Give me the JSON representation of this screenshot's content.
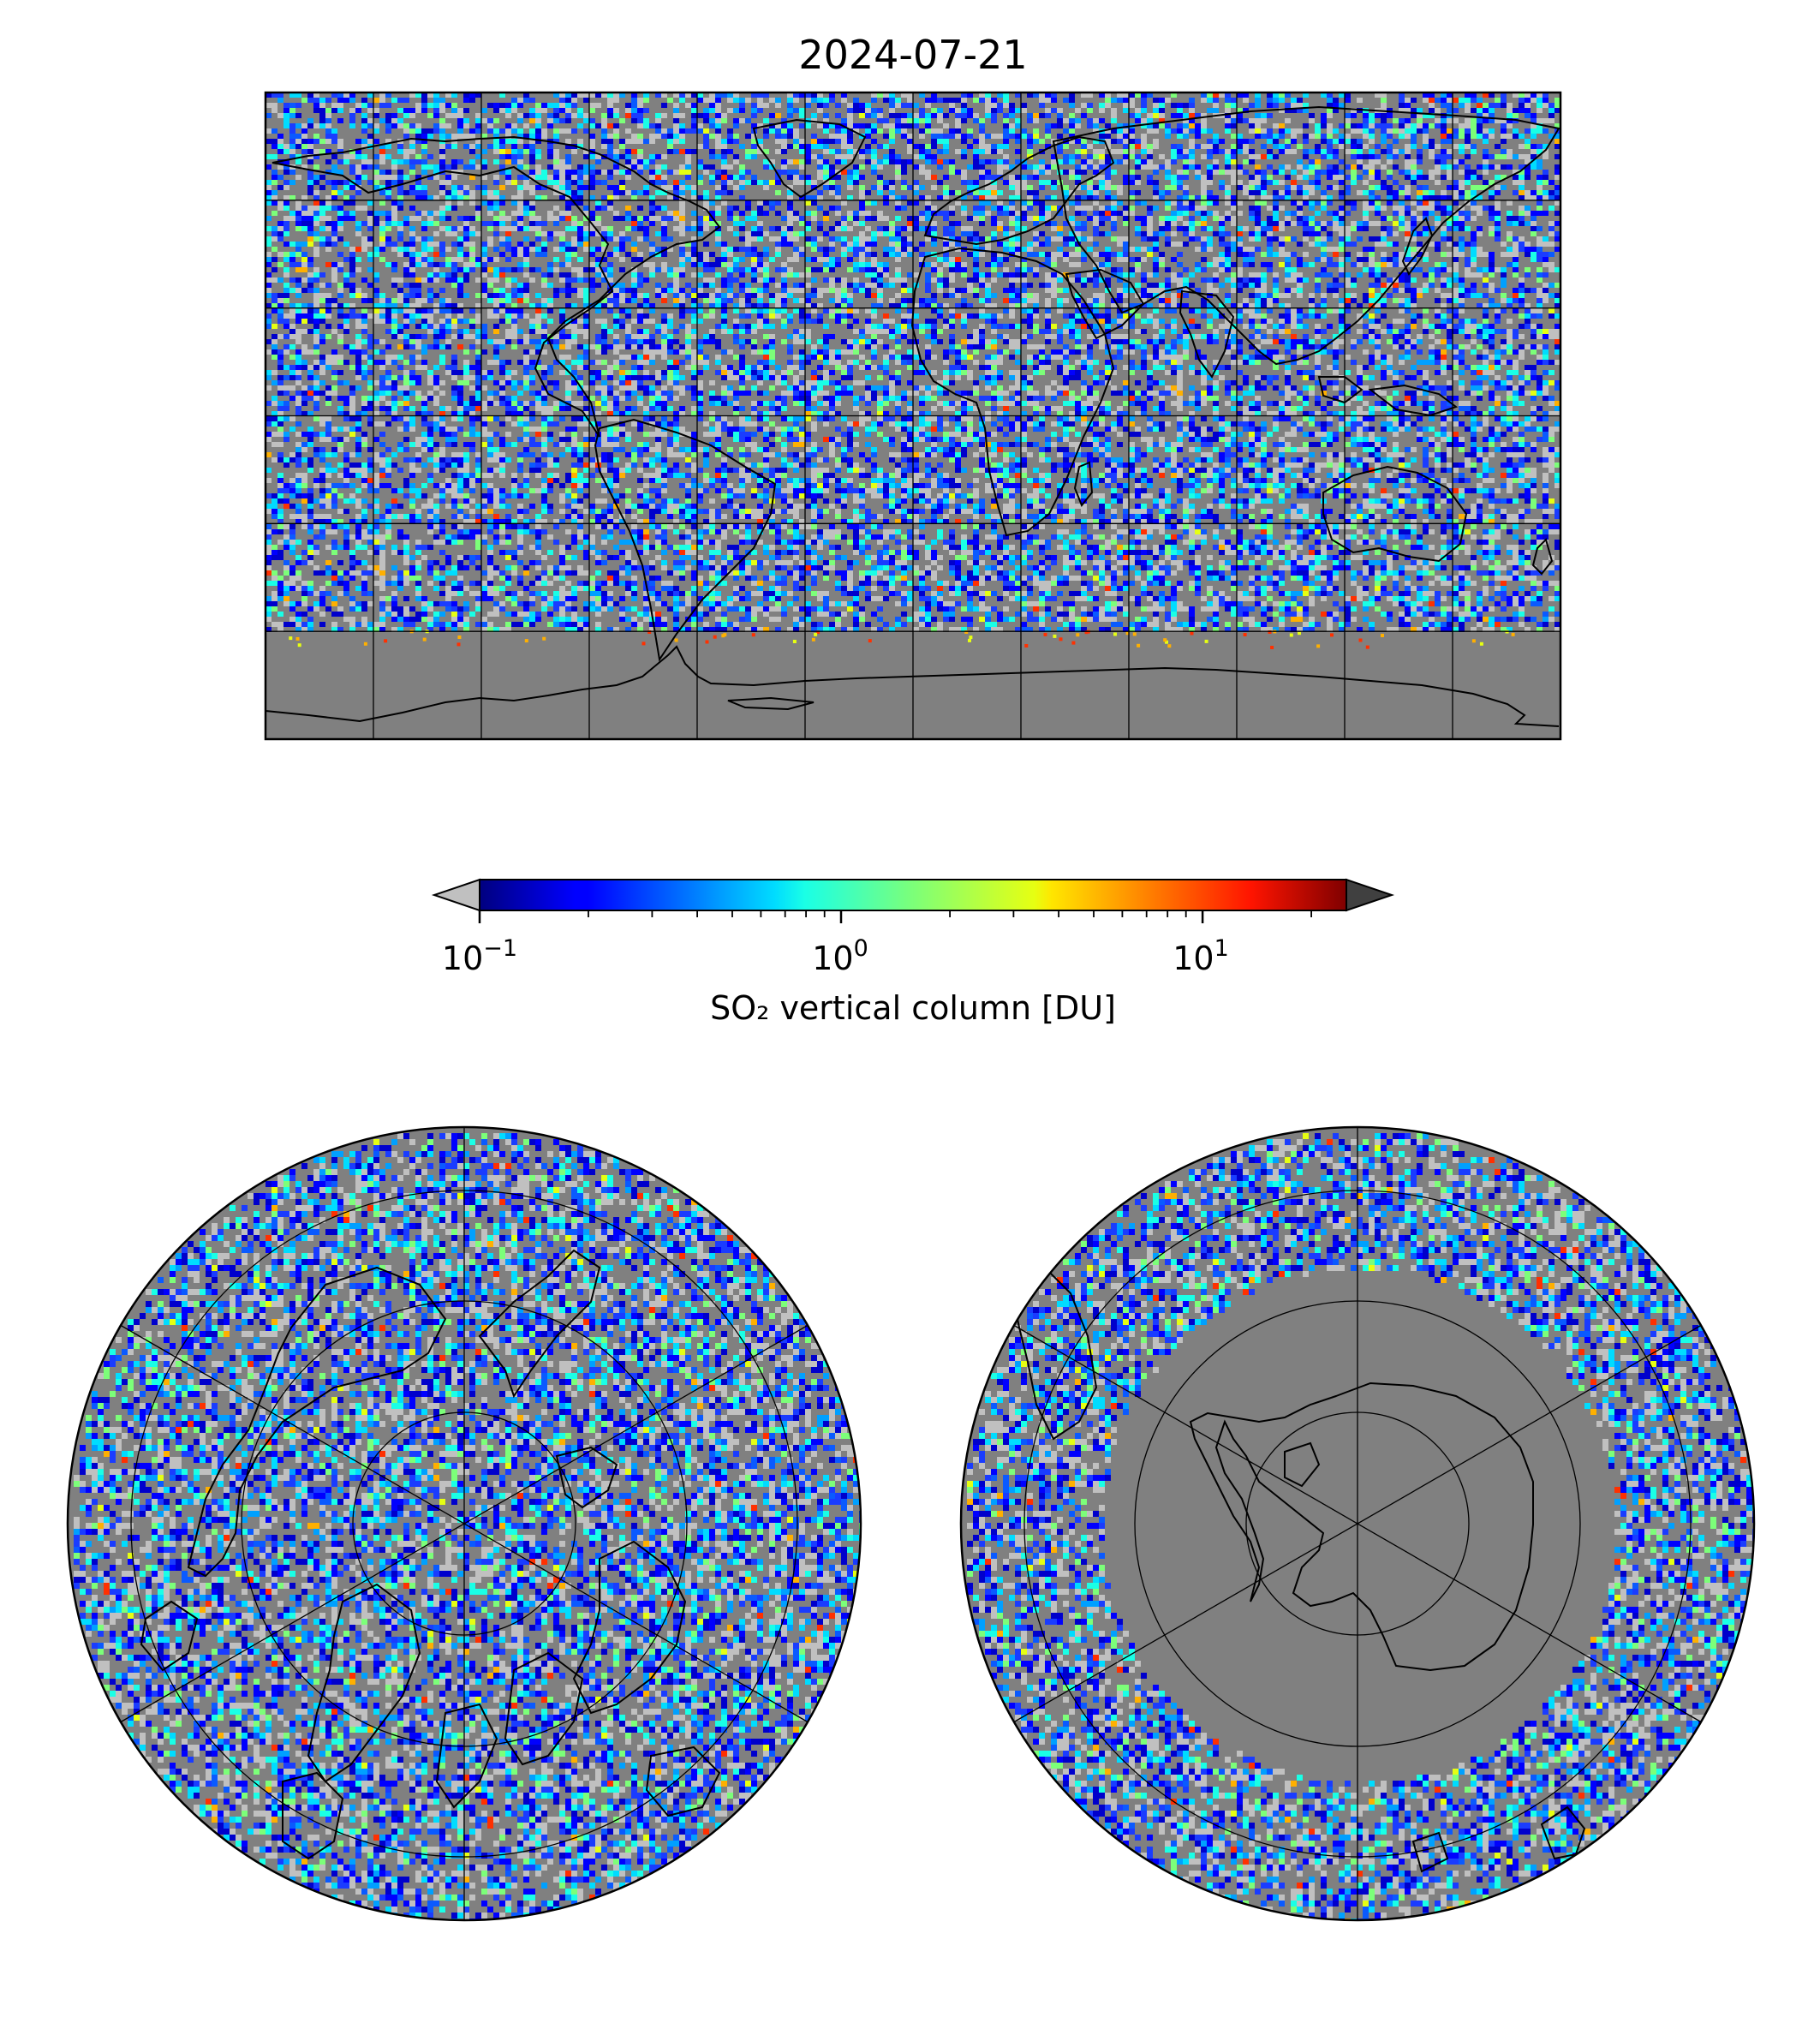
{
  "figure": {
    "title": "2024-07-21"
  },
  "colorbar": {
    "label": "SO₂ vertical column [DU]",
    "scale": "log",
    "range": [
      0.1,
      25
    ],
    "ticks": [
      {
        "value": 0.1,
        "base": "10",
        "exp": "−1"
      },
      {
        "value": 1,
        "base": "10",
        "exp": "0"
      },
      {
        "value": 10,
        "base": "10",
        "exp": "1"
      }
    ],
    "extend": "both",
    "under_color": "#c0c0c0",
    "over_color": "#404040",
    "colormap": "jet"
  },
  "colors": {
    "no_data": "#808080",
    "coastline": "#000000",
    "graticule": "#000000",
    "below_range": "#c0c0c0"
  },
  "maps": [
    {
      "projection": "plate-carree",
      "graticule_lon_step": 30,
      "graticule_lat_step": 30
    },
    {
      "projection": "north-polar-stereographic",
      "hemisphere": "north",
      "parallels": [
        80,
        60,
        40,
        20
      ]
    },
    {
      "projection": "south-polar-stereographic",
      "hemisphere": "south",
      "parallels": [
        -80,
        -60,
        -40,
        -20
      ]
    }
  ]
}
